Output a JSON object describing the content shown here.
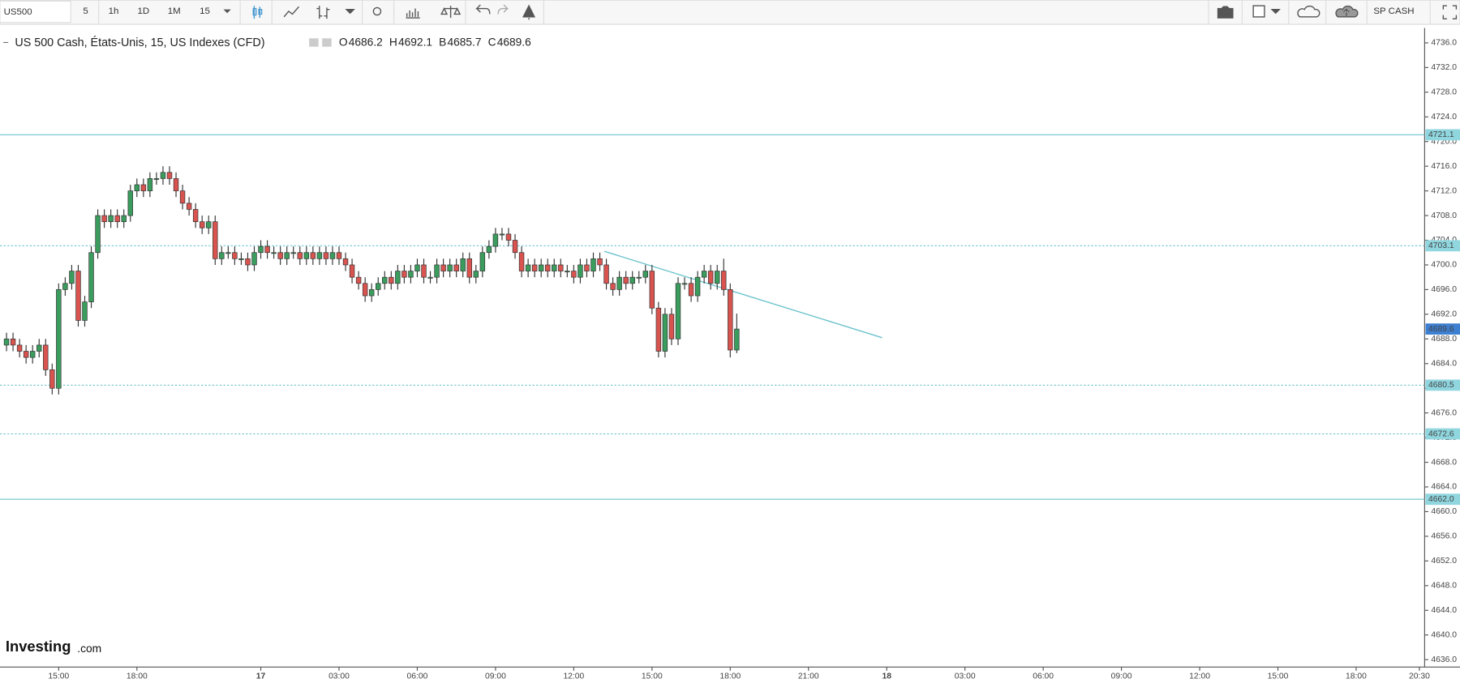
{
  "toolbar": {
    "symbol": "US500",
    "intervals": [
      "5",
      "1h",
      "1D",
      "1M",
      "15"
    ],
    "active_interval": 4,
    "account": "SP CASH"
  },
  "watermark": [
    "Investing",
    ".com"
  ],
  "chart_data": {
    "type": "candlestick",
    "title": "US 500 Cash, États-Unis, 15, US Indexes (CFD)",
    "ohlc_legend": [
      {
        "key": "O",
        "value": 4686.2
      },
      {
        "key": "H",
        "value": 4692.1
      },
      {
        "key": "B",
        "value": 4685.7
      },
      {
        "key": "C",
        "value": 4689.6
      }
    ],
    "up_color": "#3a9d5d",
    "down_color": "#d9534f",
    "line_color": "#6cc3cc",
    "x": [
      -8,
      -7,
      -6,
      -5,
      -4,
      -3,
      -2,
      -1,
      0,
      1,
      2,
      3,
      4,
      5,
      6,
      7,
      8,
      9,
      10,
      11,
      12,
      13,
      14,
      15,
      16,
      17,
      18,
      19,
      20,
      21,
      22,
      23,
      24,
      25,
      26,
      27,
      28,
      29,
      30,
      31,
      32,
      33,
      34,
      35,
      36,
      37,
      38,
      39,
      40,
      41,
      42,
      43,
      44,
      45,
      46,
      47,
      48,
      49,
      50,
      51,
      52,
      53,
      54,
      55,
      56,
      57,
      58,
      59,
      60,
      61,
      62,
      63,
      64,
      65,
      66,
      67,
      68,
      69,
      70,
      71,
      72,
      73,
      74,
      75,
      76,
      77,
      78,
      79,
      80,
      81,
      82,
      83,
      84,
      85,
      86,
      87,
      88,
      89,
      90,
      91,
      92,
      93,
      94,
      95,
      96,
      97,
      98,
      99,
      100,
      101,
      102,
      103,
      104
    ],
    "open": [
      4687,
      4688,
      4687,
      4686,
      4685,
      4686,
      4687,
      4683,
      4680,
      4696,
      4697,
      4699,
      4691,
      4694,
      4702,
      4708,
      4707,
      4708,
      4707,
      4708,
      4712,
      4713,
      4712,
      4714,
      4714,
      4715,
      4714,
      4712,
      4710,
      4709,
      4707,
      4706,
      4707,
      4701,
      4702,
      4702,
      4701,
      4701,
      4700,
      4702,
      4703,
      4702,
      4702,
      4701,
      4702,
      4702,
      4701,
      4702,
      4701,
      4702,
      4701,
      4702,
      4701,
      4700,
      4698,
      4697,
      4695,
      4696,
      4697,
      4698,
      4697,
      4699,
      4698,
      4699,
      4700,
      4698,
      4698,
      4700,
      4699,
      4700,
      4699,
      4701,
      4698,
      4699,
      4702,
      4703,
      4705,
      4705,
      4704,
      4702,
      4699,
      4700,
      4699,
      4700,
      4699,
      4700,
      4699,
      4699,
      4698,
      4700,
      4699,
      4701,
      4700,
      4697,
      4696,
      4698,
      4697,
      4698,
      4698,
      4699,
      4693,
      4686,
      4692,
      4688,
      4697,
      4697,
      4695,
      4698,
      4699,
      4697,
      4699,
      4696,
      4686.2
    ],
    "high": [
      4689,
      4689,
      4688,
      4687,
      4687,
      4688,
      4688,
      4684,
      4697,
      4698,
      4700,
      4700,
      4695,
      4703,
      4709,
      4709,
      4709,
      4709,
      4709,
      4713,
      4714,
      4714,
      4715,
      4715,
      4716,
      4716,
      4715,
      4713,
      4711,
      4710,
      4708,
      4708,
      4708,
      4703,
      4703,
      4703,
      4702,
      4702,
      4703,
      4704,
      4704,
      4703,
      4703,
      4703,
      4703,
      4703,
      4703,
      4703,
      4703,
      4703,
      4703,
      4703,
      4702,
      4701,
      4699,
      4698,
      4697,
      4698,
      4699,
      4699,
      4700,
      4700,
      4700,
      4701,
      4701,
      4699,
      4701,
      4701,
      4701,
      4701,
      4702,
      4702,
      4700,
      4703,
      4704,
      4706,
      4706,
      4706,
      4705,
      4703,
      4701,
      4701,
      4701,
      4701,
      4701,
      4701,
      4700,
      4700,
      4701,
      4701,
      4702,
      4702,
      4701,
      4698,
      4699,
      4699,
      4699,
      4699,
      4700,
      4700,
      4694,
      4693,
      4693,
      4698,
      4698,
      4698,
      4699,
      4700,
      4700,
      4700,
      4701,
      4697,
      4692.1
    ],
    "low": [
      4686,
      4686,
      4685,
      4684,
      4684,
      4685,
      4682,
      4679,
      4679,
      4695,
      4696,
      4690,
      4690,
      4693,
      4701,
      4706,
      4706,
      4706,
      4706,
      4707,
      4711,
      4711,
      4711,
      4713,
      4713,
      4713,
      4711,
      4709,
      4708,
      4706,
      4705,
      4705,
      4700,
      4700,
      4701,
      4700,
      4700,
      4699,
      4699,
      4701,
      4701,
      4701,
      4700,
      4700,
      4701,
      4700,
      4700,
      4700,
      4700,
      4700,
      4700,
      4700,
      4699,
      4697,
      4696,
      4694,
      4694,
      4695,
      4696,
      4696,
      4696,
      4697,
      4697,
      4698,
      4697,
      4697,
      4697,
      4698,
      4698,
      4698,
      4698,
      4697,
      4697,
      4698,
      4701,
      4702,
      4704,
      4703,
      4701,
      4698,
      4698,
      4698,
      4698,
      4698,
      4698,
      4698,
      4698,
      4697,
      4697,
      4698,
      4698,
      4699,
      4696,
      4695,
      4695,
      4696,
      4696,
      4697,
      4697,
      4692,
      4685,
      4685,
      4687,
      4687,
      4696,
      4694,
      4694,
      4697,
      4696,
      4696,
      4695,
      4685,
      4685.7
    ],
    "close": [
      4688,
      4687,
      4686,
      4685,
      4686,
      4687,
      4683,
      4680,
      4696,
      4697,
      4699,
      4691,
      4694,
      4702,
      4708,
      4707,
      4708,
      4707,
      4708,
      4712,
      4713,
      4712,
      4714,
      4714,
      4715,
      4714,
      4712,
      4710,
      4709,
      4707,
      4706,
      4707,
      4701,
      4702,
      4702,
      4701,
      4701,
      4700,
      4702,
      4703,
      4702,
      4702,
      4701,
      4702,
      4702,
      4701,
      4702,
      4701,
      4702,
      4701,
      4702,
      4701,
      4700,
      4698,
      4697,
      4695,
      4696,
      4697,
      4698,
      4697,
      4699,
      4698,
      4699,
      4700,
      4698,
      4698,
      4700,
      4699,
      4700,
      4699,
      4701,
      4698,
      4699,
      4702,
      4703,
      4705,
      4705,
      4704,
      4702,
      4699,
      4700,
      4699,
      4700,
      4699,
      4700,
      4699,
      4699,
      4698,
      4700,
      4699,
      4701,
      4700,
      4697,
      4696,
      4698,
      4697,
      4698,
      4698,
      4699,
      4693,
      4686,
      4692,
      4688,
      4697,
      4697,
      4695,
      4698,
      4699,
      4697,
      4699,
      4696,
      4686.2,
      4689.6
    ],
    "levels": [
      {
        "value": 4721.1,
        "style": "solid"
      },
      {
        "value": 4703.1,
        "style": "dotted"
      },
      {
        "value": 4680.5,
        "style": "dotted"
      },
      {
        "value": 4672.6,
        "style": "dotted"
      },
      {
        "value": {
          "value": 4662,
          "label": "4662.0"
        },
        "style": "solid"
      }
    ],
    "trendline": {
      "x": [
        83.7,
        126.3
      ],
      "values": [
        4702.2,
        4688.2
      ]
    },
    "xlim": [
      -9,
      209.5
    ],
    "ylim": [
      4634.8,
      4738.4
    ],
    "xticks": [
      {
        "value": 0,
        "label": "15:00"
      },
      {
        "value": 12,
        "label": "18:00"
      },
      {
        "value": 31,
        "label": "17"
      },
      {
        "value": 43,
        "label": "03:00"
      },
      {
        "value": 55,
        "label": "06:00"
      },
      {
        "value": 67,
        "label": "09:00"
      },
      {
        "value": 79,
        "label": "12:00"
      },
      {
        "value": 91,
        "label": "15:00"
      },
      {
        "value": 103,
        "label": "18:00"
      },
      {
        "value": 115,
        "label": "21:00"
      },
      {
        "value": 127,
        "label": "18"
      },
      {
        "value": 139,
        "label": "03:00"
      },
      {
        "value": 151,
        "label": "06:00"
      },
      {
        "value": 163,
        "label": "09:00"
      },
      {
        "value": 175,
        "label": "12:00"
      },
      {
        "value": 187,
        "label": "15:00"
      },
      {
        "value": 199,
        "label": "18:00"
      },
      {
        "value": 208.7,
        "label": "20:30"
      }
    ],
    "yticks": [
      {
        "value": 4636,
        "label": "4636.0"
      },
      {
        "value": 4640,
        "label": "4640.0"
      },
      {
        "value": 4644,
        "label": "4644.0"
      },
      {
        "value": 4648,
        "label": "4648.0"
      },
      {
        "value": 4652,
        "label": "4652.0"
      },
      {
        "value": 4656,
        "label": "4656.0"
      },
      {
        "value": 4660,
        "label": "4660.0"
      },
      {
        "value": 4664,
        "label": "4664.0"
      },
      {
        "value": 4668,
        "label": "4668.0"
      },
      {
        "value": 4672,
        "label": "4672.0"
      },
      {
        "value": 4676,
        "label": "4676.0"
      },
      {
        "value": 4680,
        "label": "4680.0"
      },
      {
        "value": 4684,
        "label": "4684.0"
      },
      {
        "value": 4688,
        "label": "4688.0"
      },
      {
        "value": 4692,
        "label": "4692.0"
      },
      {
        "value": 4696,
        "label": "4696.0"
      },
      {
        "value": 4700,
        "label": "4700.0"
      },
      {
        "value": 4704,
        "label": "4704.0"
      },
      {
        "value": 4708,
        "label": "4708.0"
      },
      {
        "value": 4712,
        "label": "4712.0"
      },
      {
        "value": 4716,
        "label": "4716.0"
      },
      {
        "value": 4720,
        "label": "4720.0"
      },
      {
        "value": 4724,
        "label": "4724.0"
      },
      {
        "value": 4728,
        "label": "4728.0"
      },
      {
        "value": 4732,
        "label": "4732.0"
      },
      {
        "value": 4736,
        "label": "4736.0"
      }
    ]
  }
}
